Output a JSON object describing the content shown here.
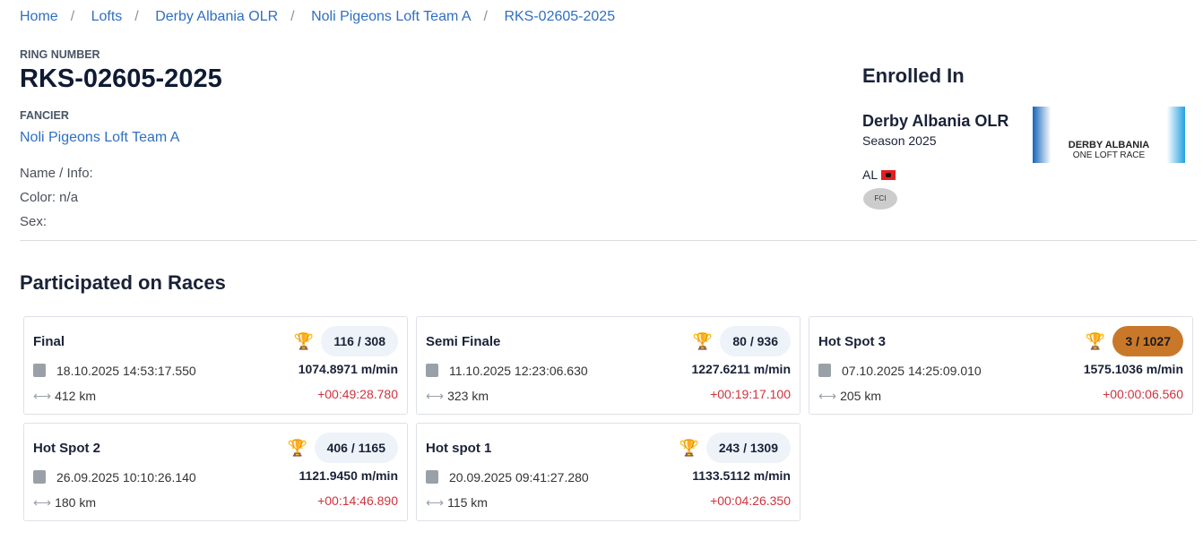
{
  "breadcrumb": [
    "Home",
    "Lofts",
    "Derby Albania OLR",
    "Noli Pigeons Loft Team A",
    "RKS-02605-2025"
  ],
  "ring_label": "RING NUMBER",
  "ring_number": "RKS-02605-2025",
  "fancier_label": "FANCIER",
  "fancier": "Noli Pigeons Loft Team A",
  "info": {
    "name": "Name / Info:",
    "color": "Color: n/a",
    "sex": "Sex:"
  },
  "enrolled": {
    "title": "Enrolled In",
    "race": "Derby Albania OLR",
    "season": "Season 2025",
    "country": "AL",
    "logo_text": "DERBY ALBANIA",
    "logo_sub": "ONE LOFT RACE"
  },
  "races_title": "Participated on Races",
  "races": [
    {
      "name": "Final",
      "rank": "116 / 308",
      "date": "18.10.2025 14:53:17.550",
      "distance": "412 km",
      "speed": "1074.8971 m/min",
      "diff": "+00:49:28.780",
      "highlight": false
    },
    {
      "name": "Semi Finale",
      "rank": "80 / 936",
      "date": "11.10.2025 12:23:06.630",
      "distance": "323 km",
      "speed": "1227.6211 m/min",
      "diff": "+00:19:17.100",
      "highlight": false
    },
    {
      "name": "Hot Spot 3",
      "rank": "3 / 1027",
      "date": "07.10.2025 14:25:09.010",
      "distance": "205 km",
      "speed": "1575.1036 m/min",
      "diff": "+00:00:06.560",
      "highlight": true
    },
    {
      "name": "Hot Spot 2",
      "rank": "406 / 1165",
      "date": "26.09.2025 10:10:26.140",
      "distance": "180 km",
      "speed": "1121.9450 m/min",
      "diff": "+00:14:46.890",
      "highlight": false
    },
    {
      "name": "Hot spot 1",
      "rank": "243 / 1309",
      "date": "20.09.2025 09:41:27.280",
      "distance": "115 km",
      "speed": "1133.5112 m/min",
      "diff": "+00:04:26.350",
      "highlight": false
    }
  ]
}
